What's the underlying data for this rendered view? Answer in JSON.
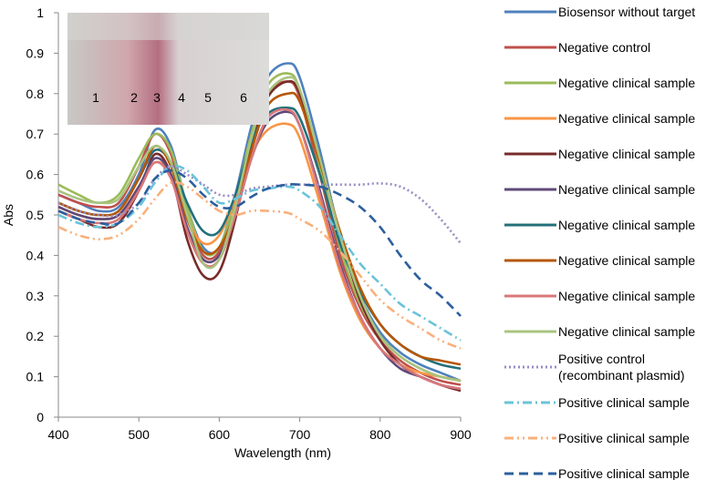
{
  "chart_data": {
    "type": "line",
    "xlabel": "Wavelength (nm)",
    "ylabel": "Abs",
    "xlim": [
      400,
      900
    ],
    "ylim": [
      0,
      1
    ],
    "xticks": [
      400,
      500,
      600,
      700,
      800,
      900
    ],
    "yticks": [
      0,
      0.1,
      0.2,
      0.3,
      0.4,
      0.5,
      0.6,
      0.7,
      0.8,
      0.9,
      1
    ],
    "annotations": [
      "1",
      "2",
      "3",
      "4",
      "5",
      "6"
    ],
    "x": [
      400,
      425,
      450,
      475,
      500,
      520,
      540,
      560,
      580,
      600,
      620,
      640,
      660,
      685,
      700,
      725,
      750,
      775,
      800,
      825,
      850,
      875,
      900
    ],
    "series": [
      {
        "name": "Biosensor without target",
        "color": "#4f81bd",
        "style": "solid",
        "values": [
          0.55,
          0.53,
          0.51,
          0.52,
          0.6,
          0.71,
          0.67,
          0.52,
          0.42,
          0.42,
          0.55,
          0.72,
          0.84,
          0.875,
          0.84,
          0.66,
          0.45,
          0.3,
          0.21,
          0.16,
          0.13,
          0.11,
          0.09
        ]
      },
      {
        "name": "Negative control",
        "color": "#c0504d",
        "style": "solid",
        "values": [
          0.55,
          0.53,
          0.52,
          0.53,
          0.62,
          0.7,
          0.65,
          0.5,
          0.4,
          0.41,
          0.53,
          0.7,
          0.8,
          0.83,
          0.79,
          0.6,
          0.4,
          0.27,
          0.19,
          0.14,
          0.11,
          0.09,
          0.08
        ]
      },
      {
        "name": "Negative clinical sample",
        "color": "#9bbb59",
        "style": "solid",
        "values": [
          0.575,
          0.55,
          0.53,
          0.55,
          0.64,
          0.7,
          0.66,
          0.52,
          0.41,
          0.42,
          0.54,
          0.7,
          0.82,
          0.85,
          0.81,
          0.62,
          0.42,
          0.28,
          0.2,
          0.15,
          0.12,
          0.1,
          0.09
        ]
      },
      {
        "name": "Negative clinical sample",
        "color": "#f79646",
        "style": "solid",
        "values": [
          0.52,
          0.5,
          0.49,
          0.5,
          0.57,
          0.63,
          0.6,
          0.49,
          0.43,
          0.45,
          0.54,
          0.65,
          0.71,
          0.725,
          0.69,
          0.53,
          0.36,
          0.24,
          0.17,
          0.13,
          0.11,
          0.1,
          0.09
        ]
      },
      {
        "name": "Negative clinical sample",
        "color": "#772c2a",
        "style": "solid",
        "values": [
          0.51,
          0.49,
          0.47,
          0.48,
          0.56,
          0.65,
          0.6,
          0.44,
          0.35,
          0.36,
          0.49,
          0.67,
          0.79,
          0.83,
          0.8,
          0.64,
          0.45,
          0.29,
          0.19,
          0.13,
          0.1,
          0.08,
          0.065
        ]
      },
      {
        "name": "Negative clinical sample",
        "color": "#5f497a",
        "style": "solid",
        "values": [
          0.52,
          0.5,
          0.49,
          0.5,
          0.57,
          0.64,
          0.6,
          0.47,
          0.39,
          0.4,
          0.5,
          0.64,
          0.73,
          0.755,
          0.72,
          0.56,
          0.38,
          0.25,
          0.17,
          0.12,
          0.1,
          0.08,
          0.07
        ]
      },
      {
        "name": "Negative clinical sample",
        "color": "#23707a",
        "style": "solid",
        "values": [
          0.53,
          0.51,
          0.5,
          0.51,
          0.59,
          0.66,
          0.63,
          0.53,
          0.46,
          0.46,
          0.55,
          0.68,
          0.75,
          0.765,
          0.74,
          0.6,
          0.43,
          0.31,
          0.23,
          0.18,
          0.15,
          0.13,
          0.12
        ]
      },
      {
        "name": "Negative clinical sample",
        "color": "#b65708",
        "style": "solid",
        "values": [
          0.53,
          0.51,
          0.5,
          0.51,
          0.59,
          0.67,
          0.62,
          0.49,
          0.41,
          0.42,
          0.51,
          0.66,
          0.77,
          0.8,
          0.78,
          0.63,
          0.46,
          0.32,
          0.23,
          0.18,
          0.15,
          0.14,
          0.13
        ]
      },
      {
        "name": "Negative clinical sample",
        "color": "#d9777a",
        "style": "solid",
        "values": [
          0.51,
          0.49,
          0.48,
          0.49,
          0.56,
          0.63,
          0.59,
          0.46,
          0.38,
          0.39,
          0.5,
          0.64,
          0.74,
          0.76,
          0.72,
          0.55,
          0.37,
          0.25,
          0.17,
          0.13,
          0.1,
          0.08,
          0.07
        ]
      },
      {
        "name": "Negative clinical sample",
        "color": "#a9c47f",
        "style": "solid",
        "values": [
          0.56,
          0.54,
          0.53,
          0.54,
          0.62,
          0.67,
          0.63,
          0.5,
          0.38,
          0.39,
          0.52,
          0.69,
          0.8,
          0.84,
          0.81,
          0.64,
          0.45,
          0.3,
          0.2,
          0.15,
          0.12,
          0.1,
          0.09
        ]
      },
      {
        "name": "Positive control (recombinant plasmid)",
        "color": "#9a8cc4",
        "style": "dotted",
        "values": [
          0.53,
          0.51,
          0.5,
          0.5,
          0.53,
          0.59,
          0.62,
          0.6,
          0.575,
          0.55,
          0.55,
          0.565,
          0.57,
          0.575,
          0.575,
          0.575,
          0.575,
          0.575,
          0.578,
          0.57,
          0.54,
          0.49,
          0.43
        ]
      },
      {
        "name": "Positive clinical sample",
        "color": "#6ac3d8",
        "style": "dashdot",
        "values": [
          0.5,
          0.48,
          0.47,
          0.48,
          0.52,
          0.58,
          0.62,
          0.61,
          0.57,
          0.53,
          0.54,
          0.56,
          0.565,
          0.57,
          0.56,
          0.52,
          0.45,
          0.38,
          0.33,
          0.28,
          0.25,
          0.22,
          0.19
        ]
      },
      {
        "name": "Positive clinical sample",
        "color": "#f9b07c",
        "style": "dashdotdot",
        "values": [
          0.47,
          0.45,
          0.44,
          0.45,
          0.49,
          0.54,
          0.58,
          0.57,
          0.54,
          0.51,
          0.5,
          0.51,
          0.51,
          0.505,
          0.49,
          0.46,
          0.41,
          0.35,
          0.29,
          0.25,
          0.22,
          0.19,
          0.17
        ]
      },
      {
        "name": "Positive clinical sample",
        "color": "#2c5f9e",
        "style": "dashed",
        "values": [
          0.51,
          0.49,
          0.48,
          0.48,
          0.53,
          0.59,
          0.61,
          0.59,
          0.55,
          0.52,
          0.52,
          0.545,
          0.565,
          0.575,
          0.575,
          0.57,
          0.55,
          0.52,
          0.47,
          0.4,
          0.34,
          0.3,
          0.25
        ]
      }
    ]
  }
}
